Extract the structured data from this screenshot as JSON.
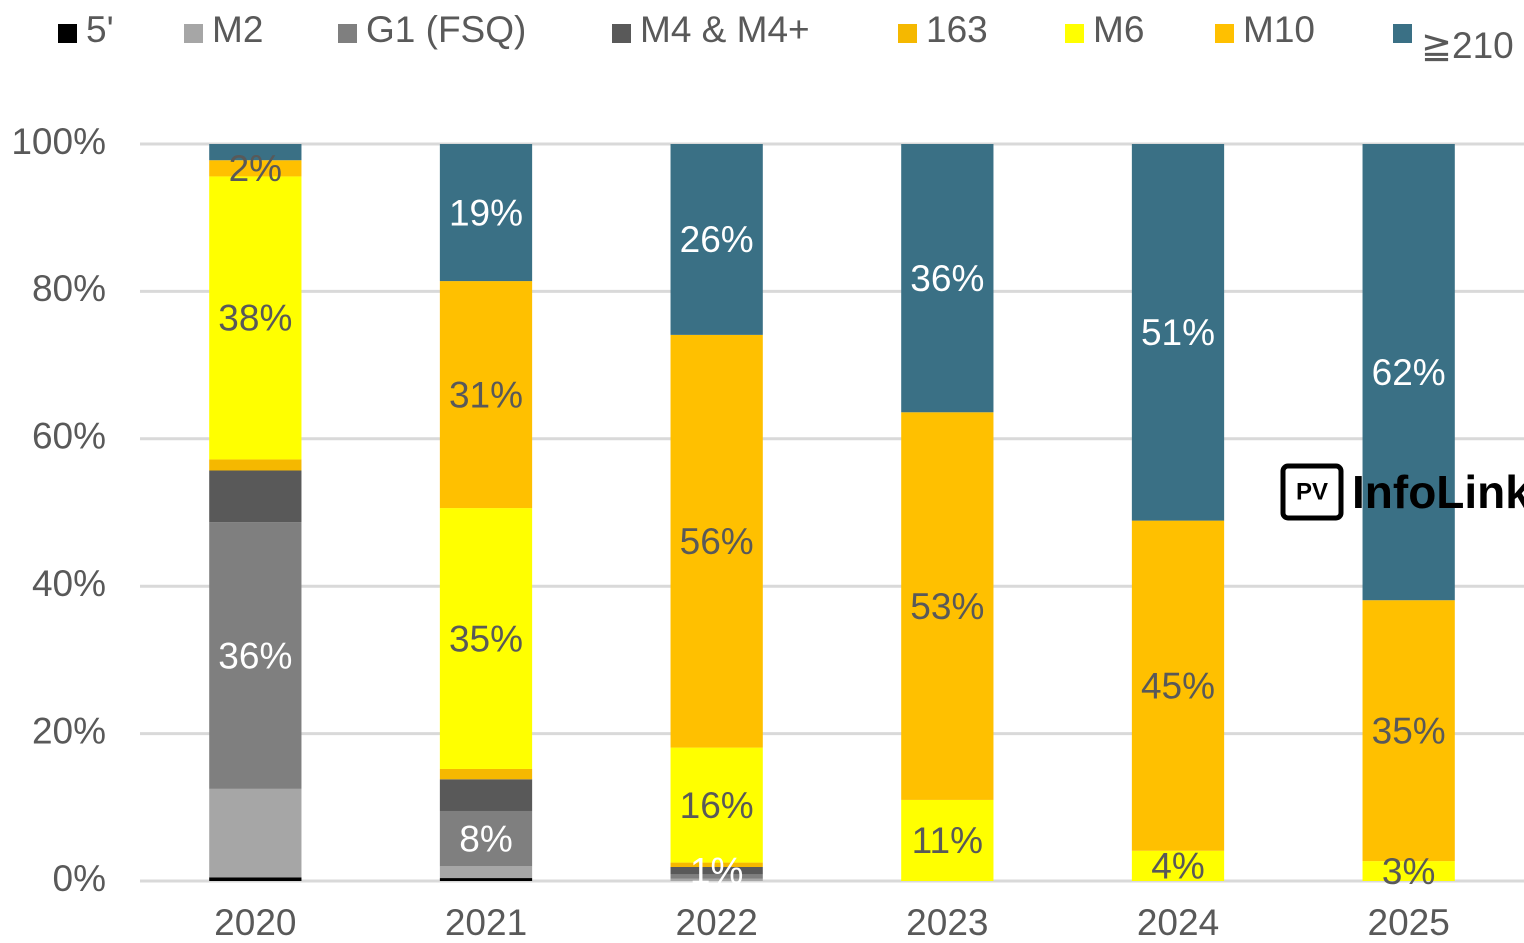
{
  "chart_data": {
    "type": "stacked_bar",
    "categories": [
      "2020",
      "2021",
      "2022",
      "2023",
      "2024",
      "2025"
    ],
    "series": [
      {
        "name": "5'",
        "color": "#000000",
        "values": [
          0.5,
          0.4,
          0,
          0,
          0,
          0
        ],
        "value_labels": [
          null,
          null,
          null,
          null,
          null,
          null
        ]
      },
      {
        "name": "M2",
        "color": "#a6a6a6",
        "values": [
          12,
          1.6,
          0.3,
          0,
          0,
          0
        ],
        "value_labels": [
          null,
          null,
          null,
          null,
          null,
          null
        ]
      },
      {
        "name": "G1 (FSQ)",
        "color": "#7f7f7f",
        "values": [
          36.2,
          7.5,
          0.6,
          0,
          0,
          0
        ],
        "value_labels": [
          "36%",
          "8%",
          null,
          null,
          null,
          null
        ]
      },
      {
        "name": "M4 & M4+",
        "color": "#595959",
        "values": [
          7,
          4.3,
          1,
          0,
          0,
          0
        ],
        "value_labels": [
          null,
          null,
          "1%",
          null,
          null,
          null
        ]
      },
      {
        "name": "163",
        "color": "#f5b800",
        "values": [
          1.5,
          1.4,
          0.6,
          0,
          0,
          0
        ],
        "value_labels": [
          null,
          null,
          null,
          null,
          null,
          null
        ]
      },
      {
        "name": "M6",
        "color": "#ffff00",
        "values": [
          38.4,
          35.4,
          15.6,
          11,
          4.1,
          2.7
        ],
        "value_labels": [
          "38%",
          "35%",
          "16%",
          "11%",
          "4%",
          "3%"
        ]
      },
      {
        "name": "M10",
        "color": "#ffc000",
        "values": [
          2.2,
          30.8,
          56,
          52.6,
          44.8,
          35.4
        ],
        "value_labels": [
          "2%",
          "31%",
          "56%",
          "53%",
          "45%",
          "35%"
        ]
      },
      {
        "name": "≧210",
        "color": "#3a7085",
        "values": [
          2.2,
          18.6,
          25.9,
          36.4,
          51.1,
          61.9
        ],
        "value_labels": [
          null,
          "19%",
          "26%",
          "36%",
          "51%",
          "62%"
        ]
      }
    ],
    "ylim": [
      0,
      100
    ],
    "yticks": [
      {
        "value": 0,
        "label": "0%"
      },
      {
        "value": 20,
        "label": "20%"
      },
      {
        "value": 40,
        "label": "40%"
      },
      {
        "value": 60,
        "label": "60%"
      },
      {
        "value": 80,
        "label": "80%"
      },
      {
        "value": 100,
        "label": "100%"
      }
    ],
    "grid": true,
    "legend": "top",
    "watermark": "InfoLink"
  }
}
